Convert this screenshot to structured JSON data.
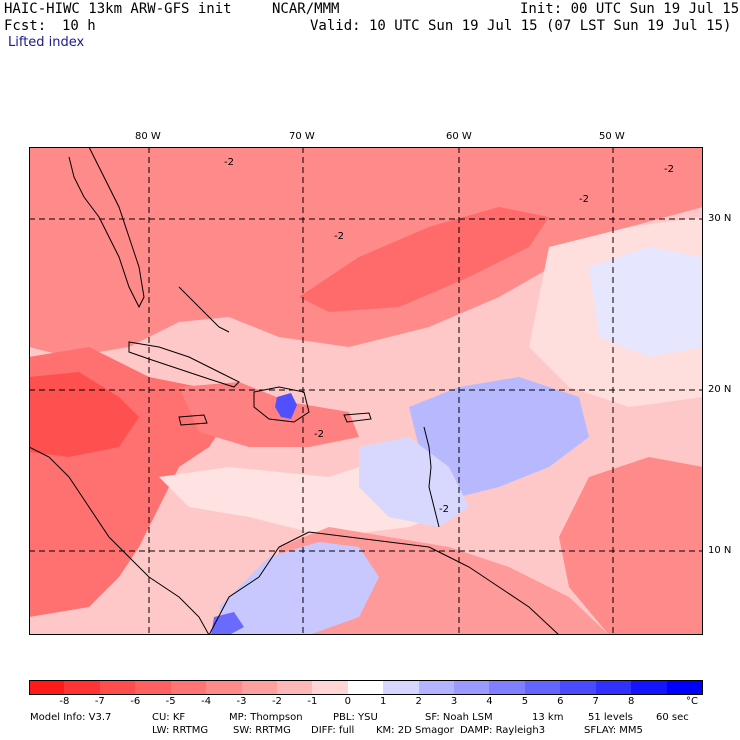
{
  "header": {
    "model": "HAIC-HIWC 13km ARW-GFS init",
    "org": "NCAR/MMM",
    "init": "Init: 00 UTC Sun 19 Jul 15",
    "fcst_label": "Fcst:",
    "fcst_value": "10 h",
    "valid": "Valid: 10 UTC Sun 19 Jul 15 (07 LST Sun 19 Jul 15)",
    "field": "Lifted index"
  },
  "map": {
    "lon_labels": [
      "80 W",
      "70 W",
      "60 W",
      "50 W"
    ],
    "lat_labels": [
      "30 N",
      "20 N",
      "10 N"
    ],
    "contour_label": "-2"
  },
  "colorbar": {
    "unit": "°C",
    "ticks": [
      "-8",
      "-7",
      "-6",
      "-5",
      "-4",
      "-3",
      "-2",
      "-1",
      "0",
      "1",
      "2",
      "3",
      "4",
      "5",
      "6",
      "7",
      "8"
    ],
    "colors": [
      "#ff1a1a",
      "#ff3333",
      "#ff4d4d",
      "#ff6060",
      "#ff7575",
      "#ff8a8a",
      "#ffa0a0",
      "#ffb8b8",
      "#ffd5d5",
      "#ffffff",
      "#d6d6ff",
      "#b3b3ff",
      "#9a9aff",
      "#7f7fff",
      "#6464ff",
      "#4a4aff",
      "#3030ff",
      "#1414ff",
      "#0000ff"
    ]
  },
  "footer": {
    "line1": [
      "Model Info: V3.7",
      "CU: KF",
      "MP: Thompson",
      "PBL: YSU",
      "SF: Noah LSM",
      "13 km",
      "51 levels",
      "60 sec"
    ],
    "line2": [
      "LW: RRTMG",
      "SW: RRTMG",
      "DIFF: full",
      "KM: 2D Smagor",
      "DAMP: Rayleigh3",
      "SFLAY: MM5"
    ]
  }
}
